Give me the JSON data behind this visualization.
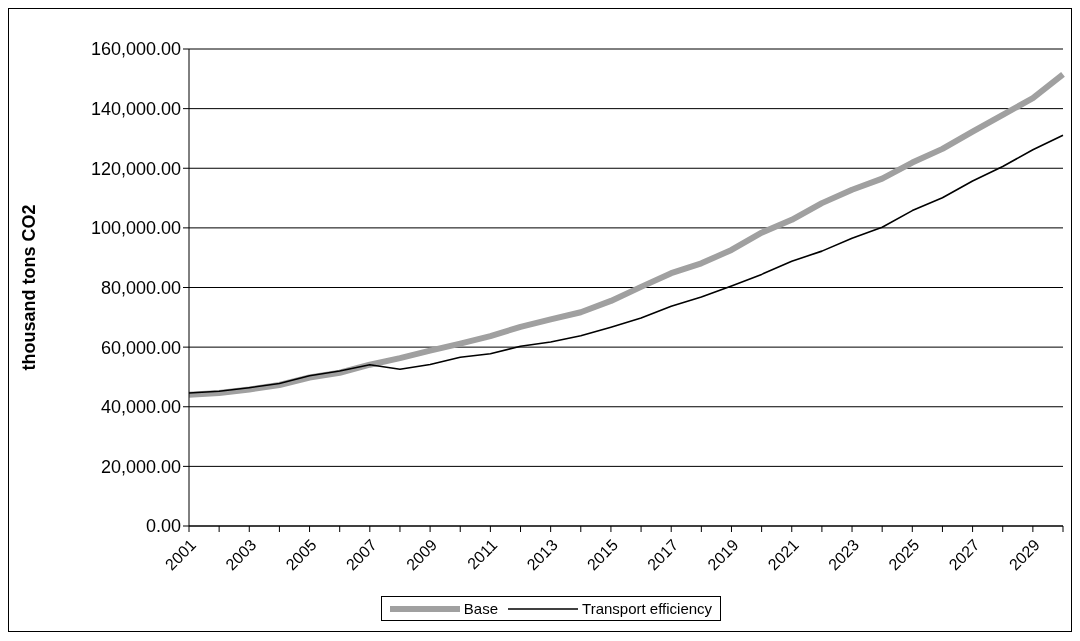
{
  "chart_data": {
    "type": "line",
    "ylabel": "thousand tons CO2",
    "categories": [
      "2001",
      null,
      "2003",
      null,
      "2005",
      null,
      "2007",
      null,
      "2009",
      null,
      "2011",
      null,
      "2013",
      null,
      "2015",
      null,
      "2017",
      null,
      "2019",
      null,
      "2021",
      null,
      "2023",
      null,
      "2025",
      null,
      "2027",
      null,
      "2029",
      null
    ],
    "series": [
      {
        "name": "Base",
        "color": "#a0a0a0",
        "values": [
          44000,
          44600,
          45800,
          47300,
          49800,
          51400,
          54100,
          56300,
          58800,
          61200,
          63700,
          66800,
          69300,
          71700,
          75500,
          80200,
          84800,
          88100,
          92600,
          98400,
          102700,
          108300,
          112800,
          116500,
          121900,
          126500,
          132300,
          137900,
          143500,
          151500
        ]
      },
      {
        "name": "Transport efficiency",
        "color": "#000000",
        "values": [
          44600,
          45200,
          46400,
          47800,
          50400,
          52000,
          54100,
          52600,
          54200,
          56600,
          57800,
          60300,
          61700,
          63800,
          66700,
          69800,
          73700,
          76800,
          80500,
          84400,
          88800,
          92200,
          96500,
          100200,
          105800,
          110100,
          115700,
          120600,
          126200,
          131100
        ]
      }
    ],
    "ylim": [
      0,
      160000
    ],
    "yticks": [
      {
        "value": 0,
        "label": "0.00"
      },
      {
        "value": 20000,
        "label": "20,000.00"
      },
      {
        "value": 40000,
        "label": "40,000.00"
      },
      {
        "value": 60000,
        "label": "60,000.00"
      },
      {
        "value": 80000,
        "label": "80,000.00"
      },
      {
        "value": 100000,
        "label": "100,000.00"
      },
      {
        "value": 120000,
        "label": "120,000.00"
      },
      {
        "value": 140000,
        "label": "140,000.00"
      },
      {
        "value": 160000,
        "label": "160,000.00"
      }
    ],
    "grid": "y",
    "legend": "bottom",
    "marker": "none",
    "line_style": "solid"
  }
}
